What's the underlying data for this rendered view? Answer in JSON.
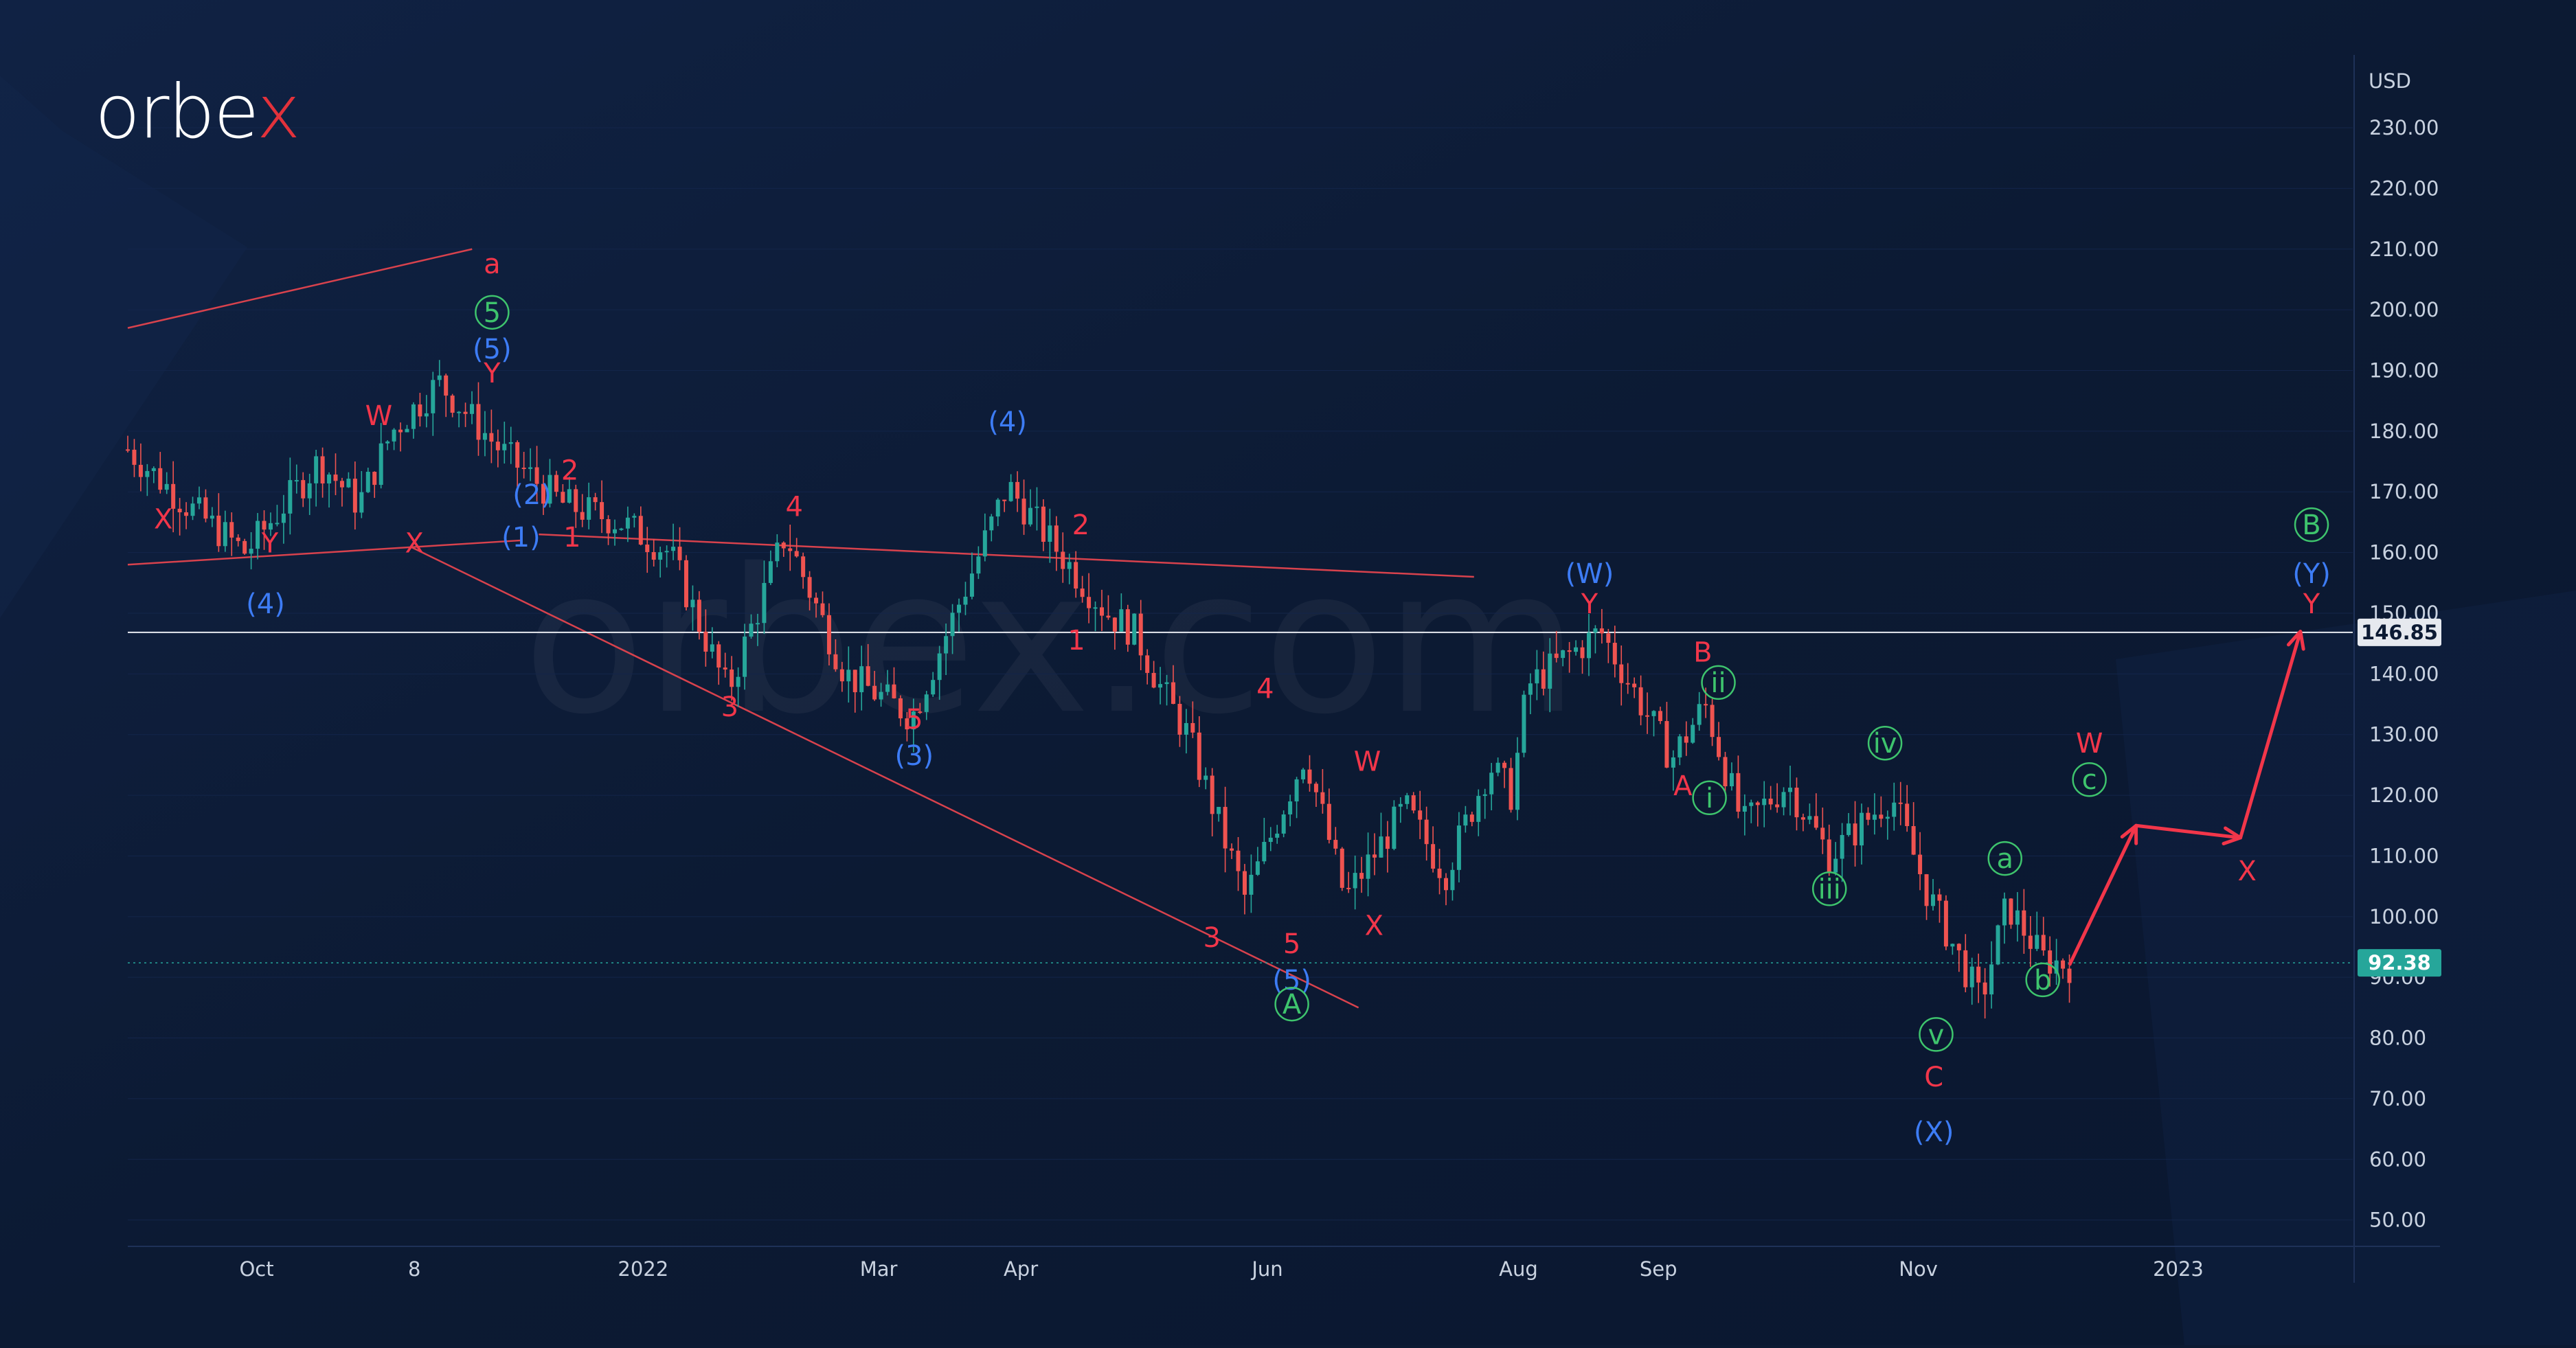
{
  "brand": {
    "name_prefix": "orbe",
    "name_x": "x",
    "accent": "#e3323b"
  },
  "watermark": {
    "text": "orbex.com"
  },
  "colors": {
    "background": "#0c1a33",
    "bull": "#26a69a",
    "bear": "#ef5350",
    "wave_red": "#f2364a",
    "wave_blue": "#3d7cf5",
    "wave_green": "#3ec46d",
    "level_white": "#e6e9ef",
    "level_teal": "#26a69a"
  },
  "chart_data": {
    "type": "candlestick",
    "currency_label": "USD",
    "x_axis_labels": [
      {
        "t": 0.058,
        "label": "Oct"
      },
      {
        "t": 0.129,
        "label": "8"
      },
      {
        "t": 0.232,
        "label": "2022"
      },
      {
        "t": 0.338,
        "label": "Mar"
      },
      {
        "t": 0.402,
        "label": "Apr"
      },
      {
        "t": 0.513,
        "label": "Jun"
      },
      {
        "t": 0.626,
        "label": "Aug"
      },
      {
        "t": 0.689,
        "label": "Sep"
      },
      {
        "t": 0.806,
        "label": "Nov"
      },
      {
        "t": 0.923,
        "label": "2023"
      }
    ],
    "y_ticks": [
      230,
      220,
      210,
      200,
      190,
      180,
      170,
      160,
      150,
      140,
      130,
      120,
      110,
      100,
      90,
      80,
      70,
      60,
      50
    ],
    "ylim": [
      46,
      242
    ],
    "levels": [
      {
        "value": 146.85,
        "label": "146.85",
        "style": "solid",
        "color": "#e6e9ef"
      },
      {
        "value": 92.38,
        "label": "92.38",
        "style": "dotted",
        "color": "#26a69a"
      }
    ],
    "price_path": [
      [
        0.0,
        177
      ],
      [
        0.026,
        168
      ],
      [
        0.053,
        160
      ],
      [
        0.086,
        175
      ],
      [
        0.104,
        168
      ],
      [
        0.119,
        180
      ],
      [
        0.14,
        188
      ],
      [
        0.17,
        176
      ],
      [
        0.196,
        168
      ],
      [
        0.222,
        165
      ],
      [
        0.244,
        160
      ],
      [
        0.27,
        137
      ],
      [
        0.296,
        163
      ],
      [
        0.323,
        140
      ],
      [
        0.353,
        133
      ],
      [
        0.378,
        155
      ],
      [
        0.396,
        171
      ],
      [
        0.43,
        155
      ],
      [
        0.441,
        150
      ],
      [
        0.453,
        147
      ],
      [
        0.466,
        137
      ],
      [
        0.477,
        130
      ],
      [
        0.503,
        103
      ],
      [
        0.53,
        127
      ],
      [
        0.548,
        103
      ],
      [
        0.575,
        118
      ],
      [
        0.593,
        107
      ],
      [
        0.613,
        125
      ],
      [
        0.623,
        120
      ],
      [
        0.63,
        138
      ],
      [
        0.663,
        147
      ],
      [
        0.695,
        126
      ],
      [
        0.71,
        135
      ],
      [
        0.727,
        115
      ],
      [
        0.747,
        122
      ],
      [
        0.766,
        110
      ],
      [
        0.794,
        120
      ],
      [
        0.81,
        104
      ],
      [
        0.834,
        86
      ],
      [
        0.846,
        102
      ],
      [
        0.862,
        93
      ],
      [
        0.874,
        92
      ]
    ],
    "projection": [
      [
        0.874,
        92
      ],
      [
        0.904,
        115
      ],
      [
        0.951,
        113
      ],
      [
        0.978,
        147
      ]
    ],
    "trendlines": [
      {
        "from": [
          0.0,
          197
        ],
        "to": [
          0.155,
          210
        ]
      },
      {
        "from": [
          0.0,
          158
        ],
        "to": [
          0.177,
          162
        ]
      },
      {
        "from": [
          0.127,
          161
        ],
        "to": [
          0.554,
          85
        ]
      },
      {
        "from": [
          0.185,
          163
        ],
        "to": [
          0.606,
          156
        ]
      }
    ],
    "wave_labels": [
      {
        "t": 0.016,
        "v": 164,
        "text": "X",
        "color": "red"
      },
      {
        "t": 0.064,
        "v": 160,
        "text": "Y",
        "color": "red"
      },
      {
        "t": 0.062,
        "v": 150,
        "text": "(4)",
        "color": "blue"
      },
      {
        "t": 0.113,
        "v": 181,
        "text": "W",
        "color": "red"
      },
      {
        "t": 0.129,
        "v": 160,
        "text": "X",
        "color": "red"
      },
      {
        "t": 0.164,
        "v": 206,
        "text": "a",
        "color": "red"
      },
      {
        "t": 0.164,
        "v": 198,
        "text": "5",
        "color": "green",
        "circled": true
      },
      {
        "t": 0.164,
        "v": 192,
        "text": "(5)",
        "color": "blue"
      },
      {
        "t": 0.164,
        "v": 188,
        "text": "Y",
        "color": "red"
      },
      {
        "t": 0.182,
        "v": 168,
        "text": "(2)",
        "color": "blue"
      },
      {
        "t": 0.199,
        "v": 172,
        "text": "2",
        "color": "red"
      },
      {
        "t": 0.177,
        "v": 161,
        "text": "(1)",
        "color": "blue"
      },
      {
        "t": 0.2,
        "v": 161,
        "text": "1",
        "color": "red"
      },
      {
        "t": 0.3,
        "v": 166,
        "text": "4",
        "color": "red"
      },
      {
        "t": 0.271,
        "v": 133,
        "text": "3",
        "color": "red"
      },
      {
        "t": 0.354,
        "v": 131,
        "text": "5",
        "color": "red"
      },
      {
        "t": 0.354,
        "v": 125,
        "text": "(3)",
        "color": "blue"
      },
      {
        "t": 0.396,
        "v": 180,
        "text": "(4)",
        "color": "blue"
      },
      {
        "t": 0.429,
        "v": 163,
        "text": "2",
        "color": "red"
      },
      {
        "t": 0.427,
        "v": 144,
        "text": "1",
        "color": "red"
      },
      {
        "t": 0.512,
        "v": 136,
        "text": "4",
        "color": "red"
      },
      {
        "t": 0.558,
        "v": 124,
        "text": "W",
        "color": "red"
      },
      {
        "t": 0.561,
        "v": 97,
        "text": "X",
        "color": "red"
      },
      {
        "t": 0.488,
        "v": 95,
        "text": "3",
        "color": "red"
      },
      {
        "t": 0.524,
        "v": 94,
        "text": "5",
        "color": "red"
      },
      {
        "t": 0.524,
        "v": 88,
        "text": "(5)",
        "color": "blue"
      },
      {
        "t": 0.524,
        "v": 84,
        "text": "A",
        "color": "green",
        "circled": true
      },
      {
        "t": 0.658,
        "v": 155,
        "text": "(W)",
        "color": "blue"
      },
      {
        "t": 0.658,
        "v": 150,
        "text": "Y",
        "color": "red"
      },
      {
        "t": 0.709,
        "v": 142,
        "text": "B",
        "color": "red"
      },
      {
        "t": 0.716,
        "v": 137,
        "text": "ii",
        "color": "green",
        "circled": true
      },
      {
        "t": 0.7,
        "v": 120,
        "text": "A",
        "color": "red"
      },
      {
        "t": 0.712,
        "v": 118,
        "text": "i",
        "color": "green",
        "circled": true
      },
      {
        "t": 0.791,
        "v": 127,
        "text": "iv",
        "color": "green",
        "circled": true
      },
      {
        "t": 0.766,
        "v": 103,
        "text": "iii",
        "color": "green",
        "circled": true
      },
      {
        "t": 0.845,
        "v": 108,
        "text": "a",
        "color": "green",
        "circled": true
      },
      {
        "t": 0.814,
        "v": 79,
        "text": "v",
        "color": "green",
        "circled": true
      },
      {
        "t": 0.862,
        "v": 88,
        "text": "b",
        "color": "green",
        "circled": true
      },
      {
        "t": 0.813,
        "v": 72,
        "text": "C",
        "color": "red"
      },
      {
        "t": 0.813,
        "v": 63,
        "text": "(X)",
        "color": "blue"
      },
      {
        "t": 0.883,
        "v": 127,
        "text": "W",
        "color": "red"
      },
      {
        "t": 0.883,
        "v": 121,
        "text": "c",
        "color": "green",
        "circled": true
      },
      {
        "t": 0.954,
        "v": 106,
        "text": "X",
        "color": "red"
      },
      {
        "t": 0.983,
        "v": 163,
        "text": "B",
        "color": "green",
        "circled": true
      },
      {
        "t": 0.983,
        "v": 155,
        "text": "(Y)",
        "color": "blue"
      },
      {
        "t": 0.983,
        "v": 150,
        "text": "Y",
        "color": "red"
      }
    ]
  }
}
